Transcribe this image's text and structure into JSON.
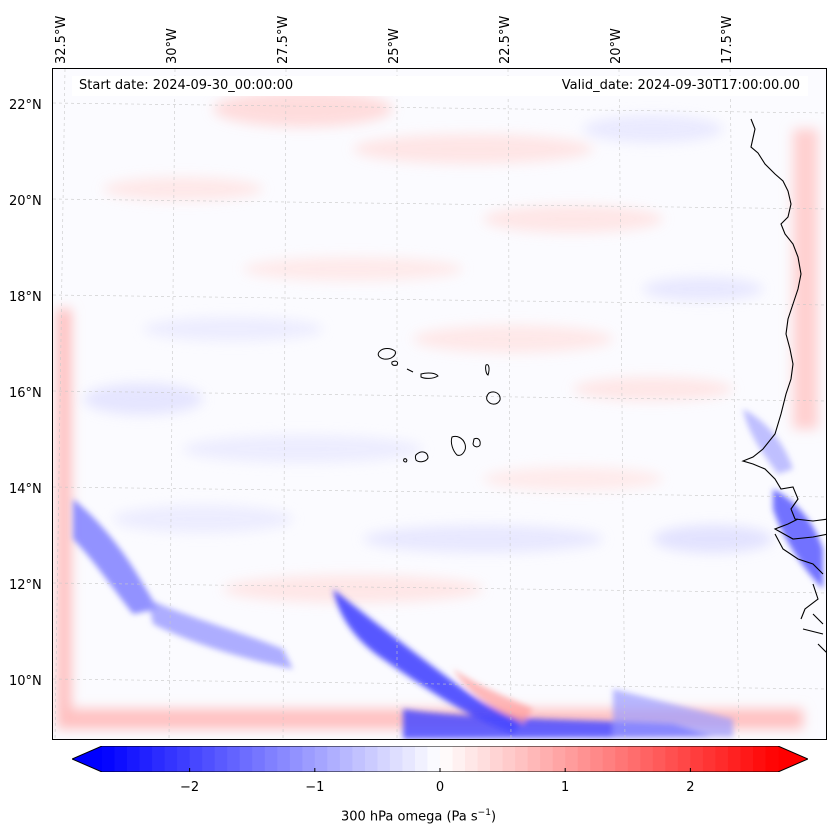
{
  "header": {
    "start_date": "Start date: 2024-09-30_00:00:00",
    "valid_date": "Valid_date: 2024-09-30T17:00:00.00"
  },
  "map": {
    "lon_labels": [
      "32.5°W",
      "30°W",
      "27.5°W",
      "25°W",
      "22.5°W",
      "20°W",
      "17.5°W"
    ],
    "lat_labels": [
      "22°N",
      "20°N",
      "18°N",
      "16°N",
      "14°N",
      "12°N",
      "10°N"
    ],
    "gridlines": true,
    "features": [
      "cape-verde-islands",
      "west-africa-coastline"
    ]
  },
  "colorbar": {
    "label_main": "300 hPa omega (Pa s",
    "label_exp": "−1",
    "label_end": ")",
    "ticks": [
      "−2",
      "−1",
      "0",
      "1",
      "2"
    ],
    "range": [
      -2.7,
      2.7
    ],
    "colormap": "bwr",
    "extend": "both",
    "colors": {
      "min": "#0000ff",
      "mid": "#ffffff",
      "max": "#ff0000"
    }
  }
}
